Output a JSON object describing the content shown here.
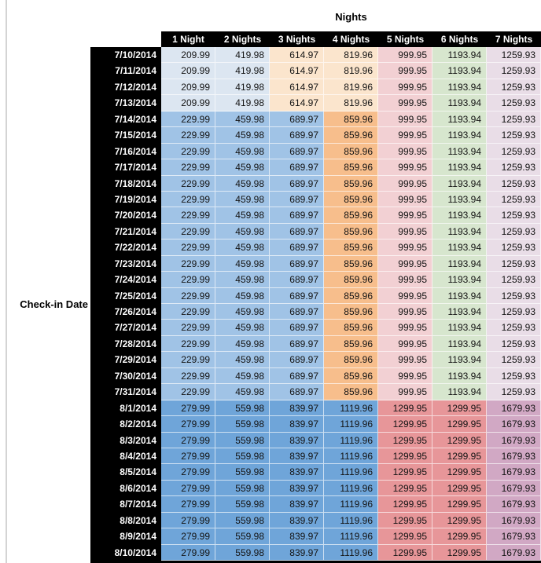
{
  "page": {
    "background": "#ffffff",
    "worksheet_gridline_color": "#d4d4d4"
  },
  "table": {
    "title": "Nights",
    "row_axis_label": "Check-in Date",
    "header_bg": "#000000",
    "header_text_color": "#ffffff"
  },
  "chart_data": {
    "type": "table",
    "title": "Nights",
    "row_label": "Check-in Date",
    "columns": [
      "1 Night",
      "2 Nights",
      "3 Nights",
      "4 Nights",
      "5 Nights",
      "6 Nights",
      "7 Nights"
    ],
    "bands": [
      {
        "name": "jul-10-to-13",
        "cell_colors": [
          "#DCE6F1",
          "#DCE6F1",
          "#FBE5CD",
          "#FBE5CD",
          "#F2D0D3",
          "#D7E6CE",
          "#E9DDE7"
        ]
      },
      {
        "name": "jul-14-to-31",
        "cell_colors": [
          "#A0C3E6",
          "#A0C3E6",
          "#A0C3E6",
          "#F7BE8C",
          "#F2D0D3",
          "#D7E6CE",
          "#E9DDE7"
        ]
      },
      {
        "name": "aug-1-to-10",
        "cell_colors": [
          "#6FA5D9",
          "#6FA5D9",
          "#6FA5D9",
          "#6FA5D9",
          "#E79699",
          "#E79699",
          "#D1A8C4"
        ]
      }
    ],
    "rows": [
      {
        "date": "7/10/2014",
        "band": 0,
        "values": [
          "209.99",
          "419.98",
          "614.97",
          "819.96",
          "999.95",
          "1193.94",
          "1259.93"
        ]
      },
      {
        "date": "7/11/2014",
        "band": 0,
        "values": [
          "209.99",
          "419.98",
          "614.97",
          "819.96",
          "999.95",
          "1193.94",
          "1259.93"
        ]
      },
      {
        "date": "7/12/2014",
        "band": 0,
        "values": [
          "209.99",
          "419.98",
          "614.97",
          "819.96",
          "999.95",
          "1193.94",
          "1259.93"
        ]
      },
      {
        "date": "7/13/2014",
        "band": 0,
        "values": [
          "209.99",
          "419.98",
          "614.97",
          "819.96",
          "999.95",
          "1193.94",
          "1259.93"
        ]
      },
      {
        "date": "7/14/2014",
        "band": 1,
        "values": [
          "229.99",
          "459.98",
          "689.97",
          "859.96",
          "999.95",
          "1193.94",
          "1259.93"
        ]
      },
      {
        "date": "7/15/2014",
        "band": 1,
        "values": [
          "229.99",
          "459.98",
          "689.97",
          "859.96",
          "999.95",
          "1193.94",
          "1259.93"
        ]
      },
      {
        "date": "7/16/2014",
        "band": 1,
        "values": [
          "229.99",
          "459.98",
          "689.97",
          "859.96",
          "999.95",
          "1193.94",
          "1259.93"
        ]
      },
      {
        "date": "7/17/2014",
        "band": 1,
        "values": [
          "229.99",
          "459.98",
          "689.97",
          "859.96",
          "999.95",
          "1193.94",
          "1259.93"
        ]
      },
      {
        "date": "7/18/2014",
        "band": 1,
        "values": [
          "229.99",
          "459.98",
          "689.97",
          "859.96",
          "999.95",
          "1193.94",
          "1259.93"
        ]
      },
      {
        "date": "7/19/2014",
        "band": 1,
        "values": [
          "229.99",
          "459.98",
          "689.97",
          "859.96",
          "999.95",
          "1193.94",
          "1259.93"
        ]
      },
      {
        "date": "7/20/2014",
        "band": 1,
        "values": [
          "229.99",
          "459.98",
          "689.97",
          "859.96",
          "999.95",
          "1193.94",
          "1259.93"
        ]
      },
      {
        "date": "7/21/2014",
        "band": 1,
        "values": [
          "229.99",
          "459.98",
          "689.97",
          "859.96",
          "999.95",
          "1193.94",
          "1259.93"
        ]
      },
      {
        "date": "7/22/2014",
        "band": 1,
        "values": [
          "229.99",
          "459.98",
          "689.97",
          "859.96",
          "999.95",
          "1193.94",
          "1259.93"
        ]
      },
      {
        "date": "7/23/2014",
        "band": 1,
        "values": [
          "229.99",
          "459.98",
          "689.97",
          "859.96",
          "999.95",
          "1193.94",
          "1259.93"
        ]
      },
      {
        "date": "7/24/2014",
        "band": 1,
        "values": [
          "229.99",
          "459.98",
          "689.97",
          "859.96",
          "999.95",
          "1193.94",
          "1259.93"
        ]
      },
      {
        "date": "7/25/2014",
        "band": 1,
        "values": [
          "229.99",
          "459.98",
          "689.97",
          "859.96",
          "999.95",
          "1193.94",
          "1259.93"
        ]
      },
      {
        "date": "7/26/2014",
        "band": 1,
        "values": [
          "229.99",
          "459.98",
          "689.97",
          "859.96",
          "999.95",
          "1193.94",
          "1259.93"
        ]
      },
      {
        "date": "7/27/2014",
        "band": 1,
        "values": [
          "229.99",
          "459.98",
          "689.97",
          "859.96",
          "999.95",
          "1193.94",
          "1259.93"
        ]
      },
      {
        "date": "7/28/2014",
        "band": 1,
        "values": [
          "229.99",
          "459.98",
          "689.97",
          "859.96",
          "999.95",
          "1193.94",
          "1259.93"
        ]
      },
      {
        "date": "7/29/2014",
        "band": 1,
        "values": [
          "229.99",
          "459.98",
          "689.97",
          "859.96",
          "999.95",
          "1193.94",
          "1259.93"
        ]
      },
      {
        "date": "7/30/2014",
        "band": 1,
        "values": [
          "229.99",
          "459.98",
          "689.97",
          "859.96",
          "999.95",
          "1193.94",
          "1259.93"
        ]
      },
      {
        "date": "7/31/2014",
        "band": 1,
        "values": [
          "229.99",
          "459.98",
          "689.97",
          "859.96",
          "999.95",
          "1193.94",
          "1259.93"
        ]
      },
      {
        "date": "8/1/2014",
        "band": 2,
        "values": [
          "279.99",
          "559.98",
          "839.97",
          "1119.96",
          "1299.95",
          "1299.95",
          "1679.93"
        ]
      },
      {
        "date": "8/2/2014",
        "band": 2,
        "values": [
          "279.99",
          "559.98",
          "839.97",
          "1119.96",
          "1299.95",
          "1299.95",
          "1679.93"
        ]
      },
      {
        "date": "8/3/2014",
        "band": 2,
        "values": [
          "279.99",
          "559.98",
          "839.97",
          "1119.96",
          "1299.95",
          "1299.95",
          "1679.93"
        ]
      },
      {
        "date": "8/4/2014",
        "band": 2,
        "values": [
          "279.99",
          "559.98",
          "839.97",
          "1119.96",
          "1299.95",
          "1299.95",
          "1679.93"
        ]
      },
      {
        "date": "8/5/2014",
        "band": 2,
        "values": [
          "279.99",
          "559.98",
          "839.97",
          "1119.96",
          "1299.95",
          "1299.95",
          "1679.93"
        ]
      },
      {
        "date": "8/6/2014",
        "band": 2,
        "values": [
          "279.99",
          "559.98",
          "839.97",
          "1119.96",
          "1299.95",
          "1299.95",
          "1679.93"
        ]
      },
      {
        "date": "8/7/2014",
        "band": 2,
        "values": [
          "279.99",
          "559.98",
          "839.97",
          "1119.96",
          "1299.95",
          "1299.95",
          "1679.93"
        ]
      },
      {
        "date": "8/8/2014",
        "band": 2,
        "values": [
          "279.99",
          "559.98",
          "839.97",
          "1119.96",
          "1299.95",
          "1299.95",
          "1679.93"
        ]
      },
      {
        "date": "8/9/2014",
        "band": 2,
        "values": [
          "279.99",
          "559.98",
          "839.97",
          "1119.96",
          "1299.95",
          "1299.95",
          "1679.93"
        ]
      },
      {
        "date": "8/10/2014",
        "band": 2,
        "values": [
          "279.99",
          "559.98",
          "839.97",
          "1119.96",
          "1299.95",
          "1299.95",
          "1679.93"
        ]
      }
    ]
  }
}
